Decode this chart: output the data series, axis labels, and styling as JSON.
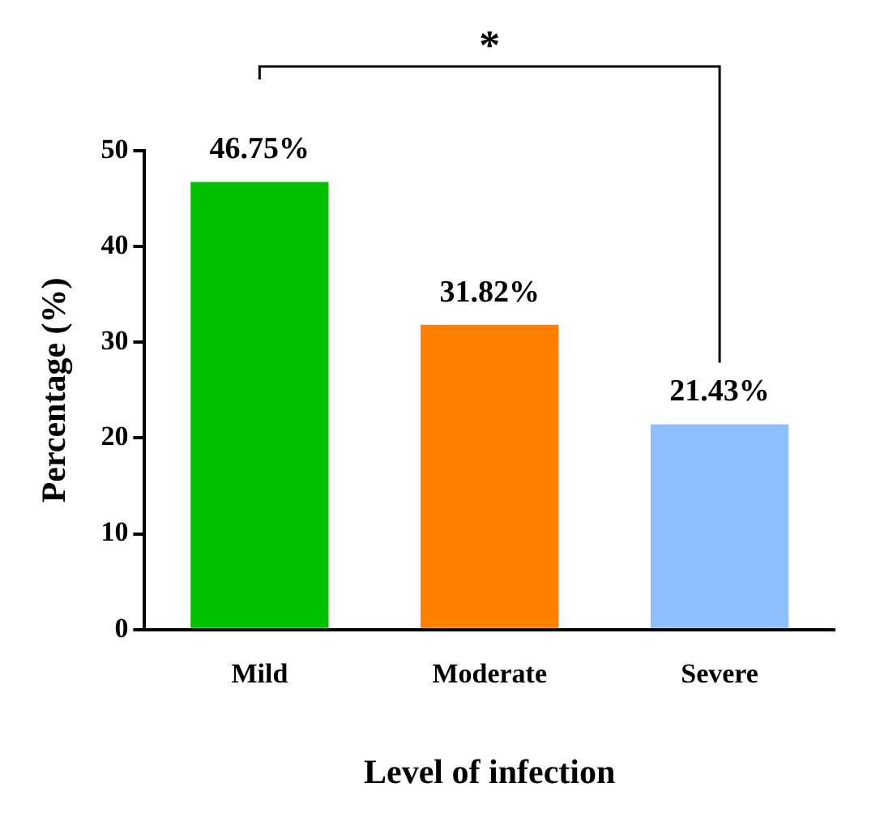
{
  "chart_data": {
    "type": "bar",
    "xlabel": "Level of infection",
    "ylabel": "Percentage (%)",
    "categories": [
      "Mild",
      "Moderate",
      "Severe"
    ],
    "values": [
      46.75,
      31.82,
      21.43
    ],
    "colors": [
      "#00c000",
      "#ff8000",
      "#8fbfff"
    ],
    "value_labels": [
      "46.75%",
      "31.82%",
      "21.43%"
    ],
    "ylim": [
      0,
      50
    ],
    "yticks": [
      0,
      10,
      20,
      30,
      40,
      50
    ],
    "grid": false,
    "legend": false,
    "annotations": [
      "*"
    ]
  }
}
